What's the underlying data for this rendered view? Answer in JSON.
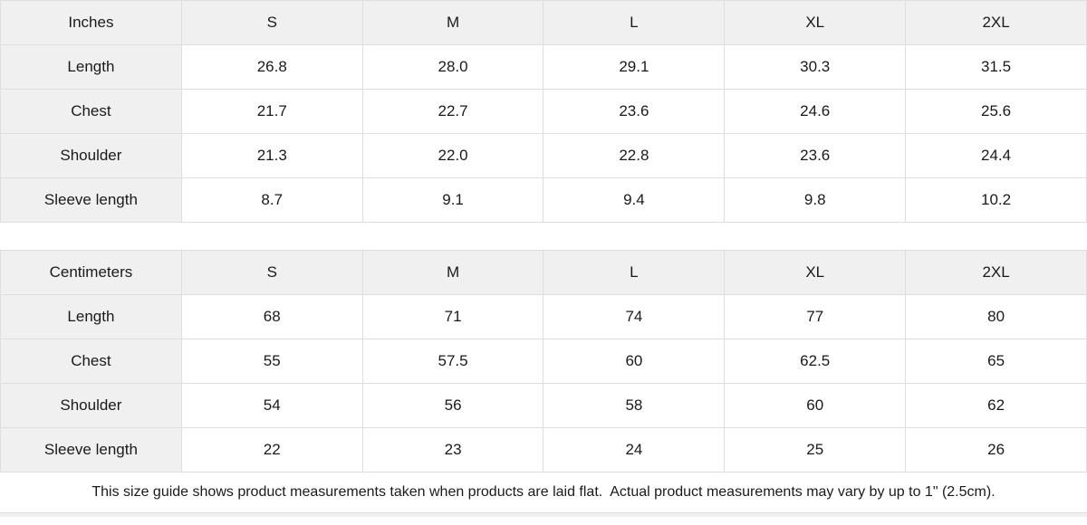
{
  "colors": {
    "header_bg": "#f0f0f0",
    "border": "#dedede",
    "text": "#1a1a1a",
    "row_bg": "#ffffff"
  },
  "tables": [
    {
      "unit_label": "Inches",
      "columns": [
        "S",
        "M",
        "L",
        "XL",
        "2XL"
      ],
      "rows": [
        {
          "label": "Length",
          "values": [
            "26.8",
            "28.0",
            "29.1",
            "30.3",
            "31.5"
          ]
        },
        {
          "label": "Chest",
          "values": [
            "21.7",
            "22.7",
            "23.6",
            "24.6",
            "25.6"
          ]
        },
        {
          "label": "Shoulder",
          "values": [
            "21.3",
            "22.0",
            "22.8",
            "23.6",
            "24.4"
          ]
        },
        {
          "label": "Sleeve length",
          "values": [
            "8.7",
            "9.1",
            "9.4",
            "9.8",
            "10.2"
          ]
        }
      ]
    },
    {
      "unit_label": "Centimeters",
      "columns": [
        "S",
        "M",
        "L",
        "XL",
        "2XL"
      ],
      "rows": [
        {
          "label": "Length",
          "values": [
            "68",
            "71",
            "74",
            "77",
            "80"
          ]
        },
        {
          "label": "Chest",
          "values": [
            "55",
            "57.5",
            "60",
            "62.5",
            "65"
          ]
        },
        {
          "label": "Shoulder",
          "values": [
            "54",
            "56",
            "58",
            "60",
            "62"
          ]
        },
        {
          "label": "Sleeve length",
          "values": [
            "22",
            "23",
            "24",
            "25",
            "26"
          ]
        }
      ]
    }
  ],
  "footer": {
    "note": "This size guide shows product measurements taken when products are laid flat.  Actual product measurements may vary by up to 1\" (2.5cm)."
  }
}
